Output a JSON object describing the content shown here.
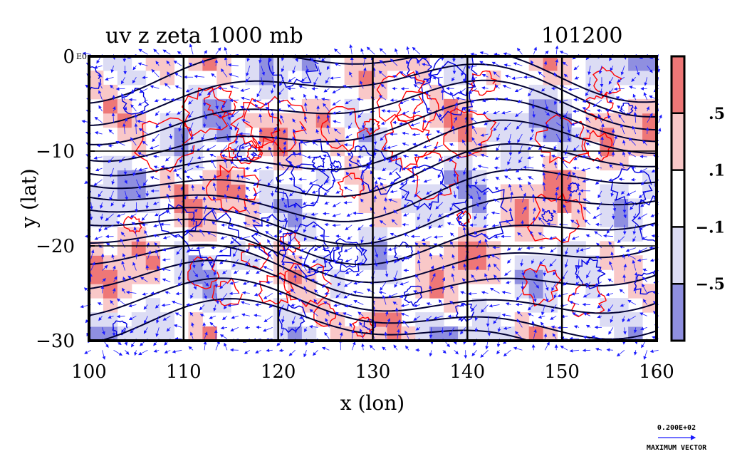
{
  "chart_data": {
    "type": "heatmap",
    "title_left": "uv z zeta 1000 mb",
    "title_right": "101200",
    "xlabel": "x (lon)",
    "ylabel": "y (lat)",
    "xlim": [
      100,
      160
    ],
    "ylim": [
      -30,
      0
    ],
    "x_ticks": [
      100,
      110,
      120,
      130,
      140,
      150,
      160
    ],
    "y_ticks": [
      0,
      -10,
      -20,
      -30
    ],
    "x_tick_labels": [
      "100",
      "110",
      "120",
      "130",
      "140",
      "150",
      "160"
    ],
    "y_tick_labels": [
      "0",
      "−10",
      "−20",
      "−30"
    ],
    "y_top_label_suffix": "E0",
    "grid": true,
    "colorbar": {
      "tick_labels": [
        ".5",
        ".1",
        "−.1",
        "−.5"
      ],
      "colors": [
        "#ee7777",
        "#f9c8c8",
        "#ffffff",
        "#dcdcf4",
        "#8f8fe0"
      ]
    },
    "colors": {
      "positive_contour": "#ff0000",
      "negative_contour": "#0000dd",
      "positive_fill": "#f9cccc",
      "negative_fill": "#dcdcf5",
      "vector": "#1a1aff",
      "height_contour": "#000033"
    },
    "reference_vector": {
      "value": "0.200E+02",
      "label": "MAXIMUM VECTOR"
    }
  }
}
